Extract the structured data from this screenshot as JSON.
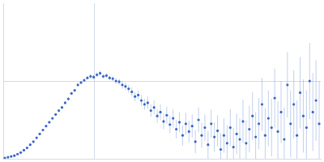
{
  "chart_data": {
    "type": "scatter",
    "x": [
      2,
      6,
      10,
      14,
      18,
      22,
      26,
      30,
      34,
      38,
      42,
      46,
      50,
      54,
      58,
      62,
      66,
      70,
      74,
      78,
      82,
      86,
      90,
      94,
      98,
      102,
      106,
      110,
      114,
      118,
      122,
      126,
      130,
      134,
      138,
      142,
      146,
      150,
      154,
      158,
      162,
      166,
      170,
      174,
      178,
      182,
      186,
      190,
      194,
      198,
      202,
      206,
      210,
      214,
      218,
      222,
      226,
      230,
      234,
      238,
      242,
      246,
      250,
      254,
      258,
      262,
      266,
      270,
      274,
      278,
      282,
      286,
      290,
      294,
      298,
      302,
      306,
      310,
      314,
      318,
      322,
      326,
      330,
      334,
      338,
      342,
      346,
      350,
      354,
      358,
      362,
      366,
      370,
      374,
      378,
      382,
      386,
      390,
      394,
      398
    ],
    "values": [
      1,
      2,
      3,
      4,
      6,
      8,
      11,
      14,
      18,
      22,
      27,
      32,
      37,
      42,
      47,
      52,
      57,
      62,
      66,
      72,
      77,
      84,
      88,
      95,
      98,
      101,
      104,
      106,
      105,
      108,
      110,
      106,
      107,
      104,
      103,
      100,
      99,
      95,
      93,
      90,
      86,
      80,
      82,
      75,
      70,
      72,
      62,
      66,
      55,
      60,
      48,
      56,
      44,
      52,
      38,
      47,
      30,
      45,
      35,
      42,
      22,
      50,
      30,
      40,
      18,
      45,
      28,
      36,
      12,
      30,
      20,
      40,
      15,
      32,
      25,
      48,
      20,
      38,
      55,
      28,
      45,
      70,
      30,
      52,
      40,
      78,
      35,
      60,
      25,
      95,
      45,
      70,
      30,
      85,
      55,
      40,
      100,
      60,
      75,
      45
    ],
    "errors": [
      1,
      1,
      1,
      1,
      1,
      1,
      1,
      1,
      1,
      1,
      1,
      1,
      1,
      1,
      1,
      1,
      1,
      2,
      2,
      2,
      2,
      2,
      2,
      2,
      2,
      2,
      2,
      3,
      3,
      3,
      3,
      3,
      3,
      3,
      3,
      4,
      4,
      5,
      5,
      5,
      6,
      6,
      6,
      7,
      7,
      8,
      8,
      9,
      9,
      10,
      10,
      11,
      11,
      12,
      12,
      13,
      13,
      14,
      14,
      15,
      15,
      16,
      16,
      17,
      18,
      18,
      19,
      20,
      21,
      22,
      23,
      24,
      25,
      26,
      27,
      28,
      29,
      30,
      31,
      32,
      33,
      34,
      35,
      36,
      37,
      38,
      39,
      40,
      41,
      42,
      43,
      44,
      45,
      46,
      47,
      48,
      49,
      50,
      52,
      55
    ],
    "color": "#3a66c4",
    "marker": "circle",
    "xlim": [
      0,
      400
    ],
    "ylim": [
      0,
      200
    ],
    "xticks": [
      115
    ],
    "yticks": [
      100
    ],
    "grid": true,
    "tick_labels": false
  }
}
